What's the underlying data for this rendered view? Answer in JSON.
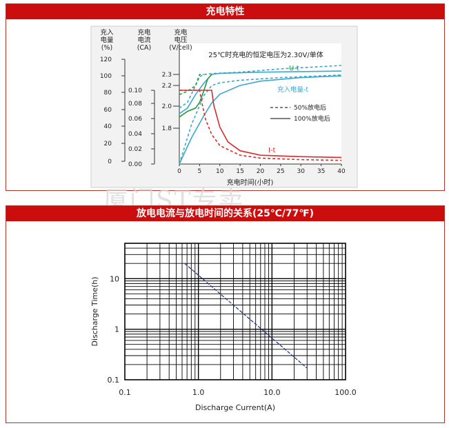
{
  "panel1": {
    "title": "充电特性"
  },
  "panel2": {
    "title": "放电电流与放电时间的关系(25℃/77℉)"
  },
  "watermark": "厦门ST专卖",
  "colors": {
    "header_bg": "#cc0d0d",
    "red": "#d62b2b",
    "green": "#1f9a3e",
    "blue": "#3aa7cf",
    "navy": "#2b3a8c"
  },
  "chart_data": [
    {
      "type": "line",
      "title": "25℃时充电的恒定电压为2.30V/单体",
      "xlabel": "充电时间(小时)",
      "x_ticks": [
        0,
        5,
        10,
        15,
        20,
        25,
        30,
        35,
        40
      ],
      "xlim": [
        0,
        40
      ],
      "left_axes": [
        {
          "label_lines": [
            "充入",
            "电量",
            "(%)"
          ],
          "ticks": [
            "120",
            "100",
            "80",
            "60",
            "40",
            "20",
            "0"
          ]
        },
        {
          "label_lines": [
            "充电",
            "电流",
            "(CA)"
          ],
          "ticks": [
            "0.10",
            "0.08",
            "0.06",
            "0.04",
            "0.02",
            "0.00"
          ]
        },
        {
          "label_lines": [
            "充电",
            "电压",
            "(V/cell)"
          ],
          "ticks": [
            "2.3",
            "2.2",
            "2.0",
            "1.8"
          ]
        }
      ],
      "curve_labels": {
        "voltage": "U-t",
        "capacity": "充入电量-t",
        "current": "I-t"
      },
      "legend": [
        {
          "style": "dashed",
          "label": "50%放电后"
        },
        {
          "style": "solid",
          "label": "100%放电后"
        }
      ],
      "series": [
        {
          "name": "U-t",
          "variant": "50%",
          "color": "blue",
          "dash": true,
          "points": [
            [
              0,
              2.0
            ],
            [
              2,
              2.05
            ],
            [
              4,
              2.2
            ],
            [
              5,
              2.28
            ],
            [
              6,
              2.3
            ],
            [
              9,
              2.31
            ],
            [
              15,
              2.32
            ],
            [
              25,
              2.35
            ],
            [
              40,
              2.38
            ]
          ]
        },
        {
          "name": "U-t",
          "variant": "100%",
          "color": "blue",
          "dash": false,
          "points": [
            [
              0,
              1.95
            ],
            [
              2,
              2.0
            ],
            [
              4,
              2.12
            ],
            [
              6,
              2.22
            ],
            [
              8,
              2.3
            ],
            [
              10,
              2.31
            ],
            [
              20,
              2.32
            ],
            [
              40,
              2.33
            ]
          ]
        },
        {
          "name": "充入电量-t",
          "variant": "50%",
          "color": "blue",
          "dash": true,
          "points": [
            [
              0,
              0
            ],
            [
              3,
              45
            ],
            [
              6,
              78
            ],
            [
              8,
              90
            ],
            [
              10,
              93
            ],
            [
              15,
              96
            ],
            [
              25,
              99
            ],
            [
              40,
              102
            ]
          ]
        },
        {
          "name": "充入电量-t",
          "variant": "100%",
          "color": "blue",
          "dash": false,
          "points": [
            [
              0,
              0
            ],
            [
              3,
              30
            ],
            [
              6,
              55
            ],
            [
              8,
              70
            ],
            [
              10,
              80
            ],
            [
              15,
              90
            ],
            [
              20,
              95
            ],
            [
              30,
              99
            ],
            [
              40,
              101
            ]
          ]
        },
        {
          "name": "I-t",
          "variant": "50%",
          "color": "red",
          "dash": true,
          "points": [
            [
              0,
              0.1
            ],
            [
              5,
              0.1
            ],
            [
              5.5,
              0.085
            ],
            [
              6.5,
              0.06
            ],
            [
              8,
              0.04
            ],
            [
              10,
              0.025
            ],
            [
              15,
              0.012
            ],
            [
              20,
              0.008
            ],
            [
              30,
              0.006
            ],
            [
              40,
              0.005
            ]
          ]
        },
        {
          "name": "I-t",
          "variant": "100%",
          "color": "red",
          "dash": false,
          "points": [
            [
              0,
              0.1
            ],
            [
              8,
              0.1
            ],
            [
              8.5,
              0.08
            ],
            [
              10,
              0.05
            ],
            [
              12,
              0.03
            ],
            [
              15,
              0.018
            ],
            [
              20,
              0.012
            ],
            [
              30,
              0.01
            ],
            [
              40,
              0.009
            ]
          ]
        },
        {
          "name": "U-t green",
          "variant": "50%",
          "color": "green",
          "dash": true,
          "points": [
            [
              0,
              2.12
            ],
            [
              2,
              2.15
            ],
            [
              4,
              2.2
            ],
            [
              5,
              2.3
            ],
            [
              6,
              2.3
            ]
          ]
        },
        {
          "name": "U-t green",
          "variant": "100%",
          "color": "green",
          "dash": false,
          "points": [
            [
              0,
              1.92
            ],
            [
              2,
              1.97
            ],
            [
              4,
              2.0
            ],
            [
              5,
              2.05
            ],
            [
              6,
              2.15
            ],
            [
              7,
              2.26
            ],
            [
              8,
              2.3
            ]
          ]
        }
      ]
    },
    {
      "type": "line",
      "xscale": "log",
      "yscale": "log",
      "xlabel": "Discharge Current(A)",
      "ylabel": "Discharge Time(h)",
      "xlim": [
        0.1,
        100
      ],
      "ylim": [
        0.1,
        50
      ],
      "x_ticks": [
        "0.1",
        "1.0",
        "10.0",
        "100.0"
      ],
      "y_ticks": [
        "0.1",
        "1",
        "10"
      ],
      "grid": true,
      "series": [
        {
          "points": [
            [
              0.65,
              20
            ],
            [
              30,
              0.17
            ]
          ]
        }
      ]
    }
  ]
}
